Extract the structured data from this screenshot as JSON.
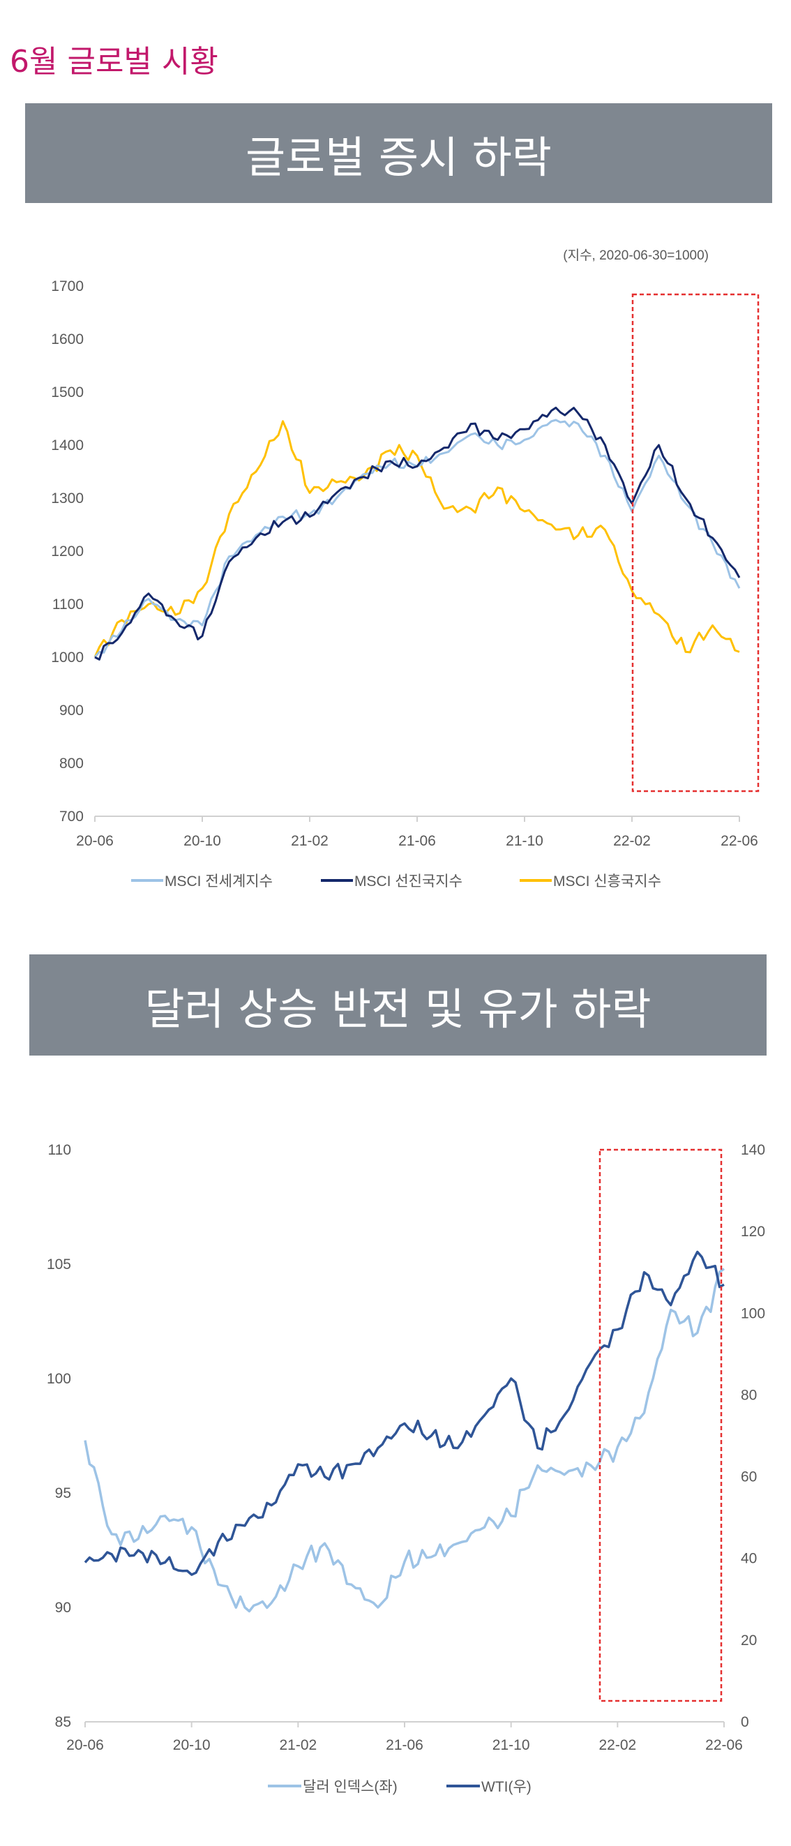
{
  "page_heading": "6월 글로벌 시황",
  "banner1_title": "글로벌 증시 하락",
  "banner2_title": "달러 상승 반전 및 유가 하락",
  "chart_data": [
    {
      "type": "line",
      "note": "(지수, 2020-06-30=1000)",
      "ylim": [
        700,
        1700
      ],
      "yticks": [
        700,
        800,
        900,
        1000,
        1100,
        1200,
        1300,
        1400,
        1500,
        1600,
        1700
      ],
      "xticks": [
        "20-06",
        "20-10",
        "21-02",
        "21-06",
        "21-10",
        "22-02",
        "22-06"
      ],
      "grid": false,
      "legend_position": "bottom",
      "highlight": {
        "from": "22-02",
        "to": "22-06",
        "style": "red dashed box"
      },
      "series": [
        {
          "name": "MSCI 전세계지수",
          "color": "#9dc3e6",
          "x": [
            "2020-06",
            "2020-07",
            "2020-08",
            "2020-09",
            "2020-10",
            "2020-11",
            "2020-12",
            "2021-01",
            "2021-02",
            "2021-03",
            "2021-04",
            "2021-05",
            "2021-06",
            "2021-07",
            "2021-08",
            "2021-09",
            "2021-10",
            "2021-11",
            "2021-12",
            "2022-01",
            "2022-02",
            "2022-03",
            "2022-04",
            "2022-05",
            "2022-06"
          ],
          "y": [
            1000,
            1050,
            1110,
            1070,
            1060,
            1190,
            1230,
            1265,
            1270,
            1300,
            1345,
            1365,
            1360,
            1385,
            1420,
            1400,
            1410,
            1445,
            1440,
            1380,
            1275,
            1380,
            1290,
            1215,
            1130
          ]
        },
        {
          "name": "MSCI 선진국지수",
          "color": "#14286b",
          "x": [
            "2020-06",
            "2020-07",
            "2020-08",
            "2020-09",
            "2020-10",
            "2020-11",
            "2020-12",
            "2021-01",
            "2021-02",
            "2021-03",
            "2021-04",
            "2021-05",
            "2021-06",
            "2021-07",
            "2021-08",
            "2021-09",
            "2021-10",
            "2021-11",
            "2021-12",
            "2022-01",
            "2022-02",
            "2022-03",
            "2022-04",
            "2022-05",
            "2022-06"
          ],
          "y": [
            1000,
            1045,
            1120,
            1070,
            1040,
            1180,
            1225,
            1255,
            1265,
            1310,
            1340,
            1370,
            1360,
            1395,
            1440,
            1410,
            1430,
            1465,
            1460,
            1400,
            1290,
            1400,
            1300,
            1225,
            1150
          ]
        },
        {
          "name": "MSCI 신흥국지수",
          "color": "#ffc000",
          "x": [
            "2020-06",
            "2020-07",
            "2020-08",
            "2020-09",
            "2020-10",
            "2020-11",
            "2020-12",
            "2021-01",
            "2021-02",
            "2021-03",
            "2021-04",
            "2021-05",
            "2021-06",
            "2021-07",
            "2021-08",
            "2021-09",
            "2021-10",
            "2021-11",
            "2021-12",
            "2022-01",
            "2022-02",
            "2022-03",
            "2022-04",
            "2022-05",
            "2022-06"
          ],
          "y": [
            1000,
            1070,
            1100,
            1080,
            1130,
            1270,
            1350,
            1445,
            1310,
            1330,
            1340,
            1390,
            1380,
            1280,
            1280,
            1320,
            1275,
            1250,
            1230,
            1240,
            1125,
            1080,
            1010,
            1060,
            1010
          ]
        }
      ]
    },
    {
      "type": "line",
      "ylim_left": [
        85,
        110
      ],
      "ylim_right": [
        0,
        140
      ],
      "yticks_left": [
        85,
        90,
        95,
        100,
        105,
        110
      ],
      "yticks_right": [
        0,
        20,
        40,
        60,
        80,
        100,
        120,
        140
      ],
      "xticks": [
        "20-06",
        "20-10",
        "21-02",
        "21-06",
        "21-10",
        "22-02",
        "22-06"
      ],
      "grid": false,
      "legend_position": "bottom",
      "highlight": {
        "from": "22-01",
        "to": "22-06",
        "style": "red dashed box"
      },
      "series": [
        {
          "name": "달러 인덱스(좌)",
          "color": "#9dc3e6",
          "axis": "left",
          "x": [
            "2020-06",
            "2020-07",
            "2020-08",
            "2020-09",
            "2020-10",
            "2020-11",
            "2020-12",
            "2021-01",
            "2021-02",
            "2021-03",
            "2021-04",
            "2021-05",
            "2021-06",
            "2021-07",
            "2021-08",
            "2021-09",
            "2021-10",
            "2021-11",
            "2021-12",
            "2022-01",
            "2022-02",
            "2022-03",
            "2022-04",
            "2022-05",
            "2022-06"
          ],
          "y": [
            97.3,
            93.2,
            93.0,
            94.0,
            93.5,
            91.0,
            90.0,
            90.2,
            91.8,
            92.8,
            91.0,
            90.0,
            92.0,
            92.2,
            92.8,
            93.5,
            94.0,
            96.2,
            95.8,
            96.2,
            97.0,
            98.5,
            103.0,
            102.0,
            104.8
          ]
        },
        {
          "name": "WTI(우)",
          "color": "#2f5597",
          "axis": "right",
          "x": [
            "2020-06",
            "2020-07",
            "2020-08",
            "2020-09",
            "2020-10",
            "2020-11",
            "2020-12",
            "2021-01",
            "2021-02",
            "2021-03",
            "2021-04",
            "2021-05",
            "2021-06",
            "2021-07",
            "2021-08",
            "2021-09",
            "2021-10",
            "2021-11",
            "2021-12",
            "2022-01",
            "2022-02",
            "2022-03",
            "2022-04",
            "2022-05",
            "2022-06"
          ],
          "y": [
            39,
            41,
            42,
            39,
            36,
            44,
            48,
            53,
            63,
            60,
            63,
            67,
            73,
            70,
            67,
            75,
            84,
            67,
            75,
            88,
            96,
            110,
            102,
            115,
            107
          ]
        }
      ]
    }
  ]
}
